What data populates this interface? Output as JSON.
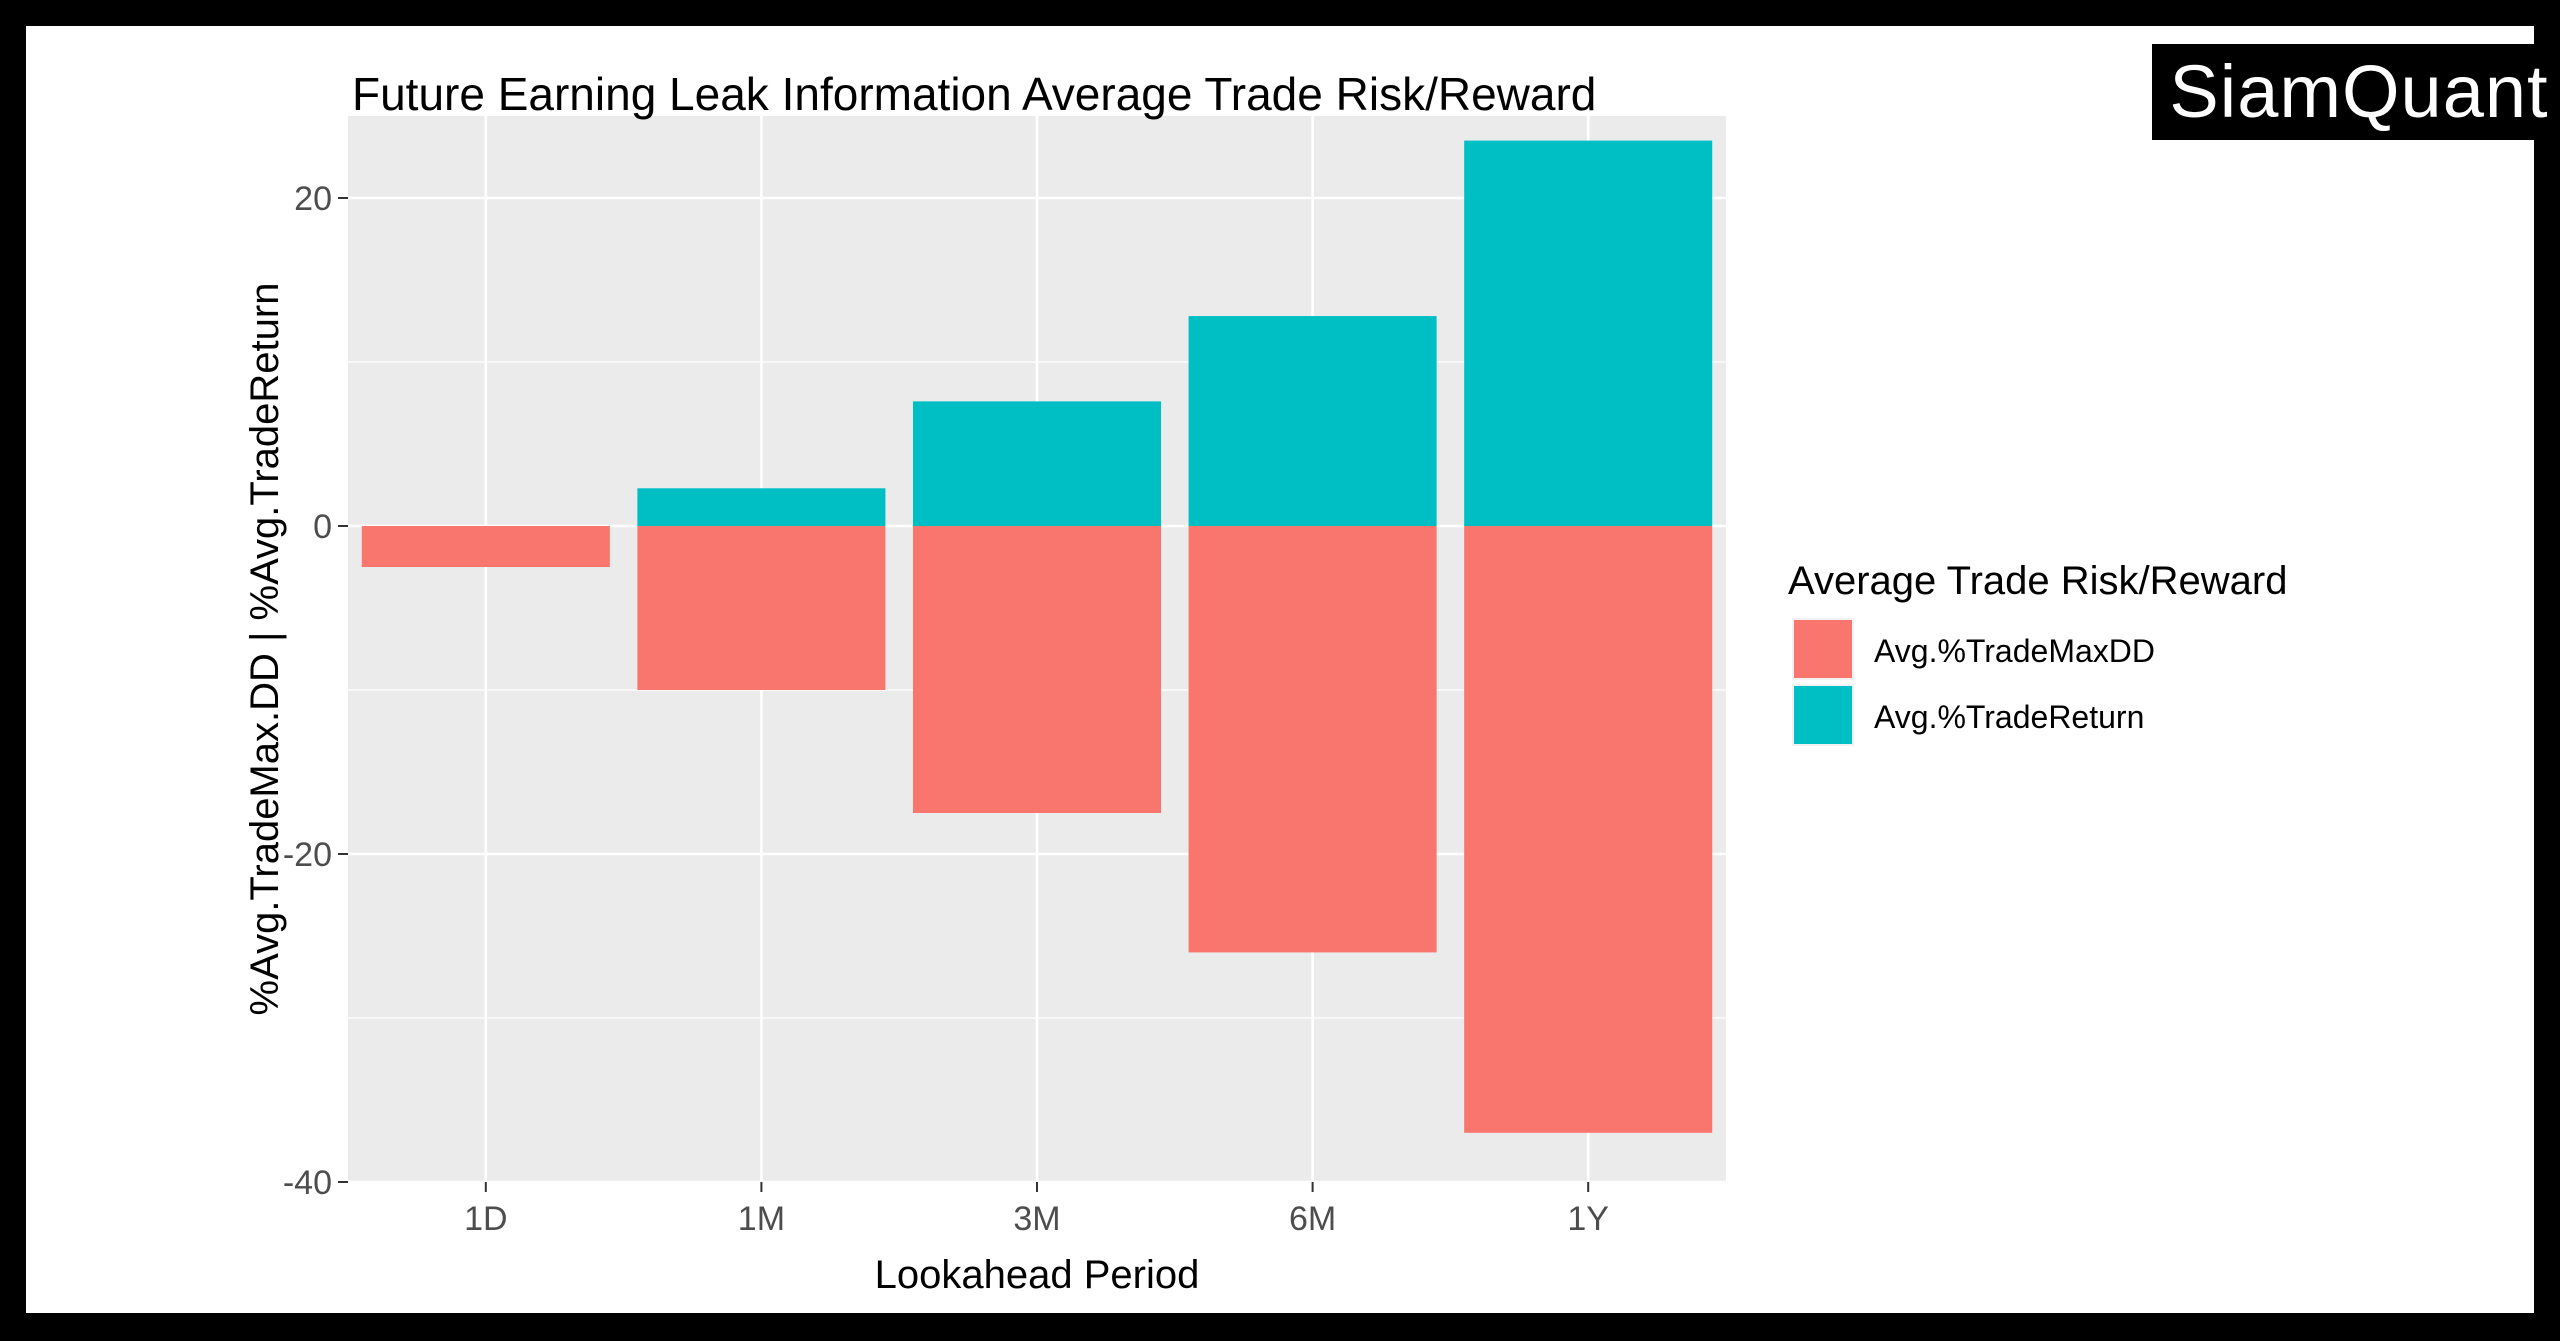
{
  "watermark": "SiamQuant",
  "colors": {
    "background": "#000000",
    "canvas": "#ffffff",
    "panel": "#ebebeb",
    "grid": "#ffffff",
    "maxdd": "#F8766D",
    "return": "#00BFC4"
  },
  "chart_data": {
    "type": "bar",
    "stacked": true,
    "title": "Future Earning Leak Information Average Trade Risk/Reward",
    "xlabel": "Lookahead Period",
    "ylabel": "%Avg.TradeMax.DD | %Avg.TradeReturn",
    "categories": [
      "1D",
      "1M",
      "3M",
      "6M",
      "1Y"
    ],
    "ylim": [
      -40,
      25
    ],
    "yticks": [
      -40,
      -20,
      0,
      20
    ],
    "grid": true,
    "legend": {
      "title": "Average Trade Risk/Reward",
      "placement": "right"
    },
    "series": [
      {
        "name": "Avg.%TradeMaxDD",
        "color": "#F8766D",
        "values": [
          -2.5,
          -10,
          -17.5,
          -26,
          -37
        ]
      },
      {
        "name": "Avg.%TradeReturn",
        "color": "#00BFC4",
        "values": [
          0,
          2.3,
          7.6,
          12.8,
          23.5
        ]
      }
    ]
  }
}
